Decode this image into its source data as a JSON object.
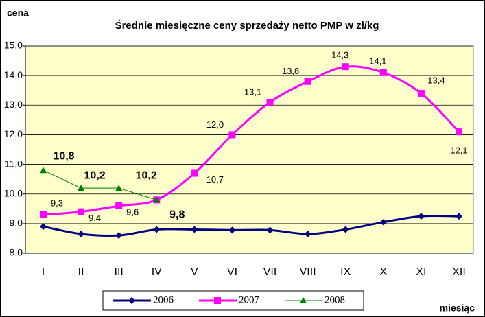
{
  "chart_data": {
    "type": "line",
    "title": "Średnie miesięczne ceny sprzedaży netto PMP w zł/kg",
    "y_label": "cena",
    "x_label": "miesiąc",
    "categories": [
      "I",
      "II",
      "III",
      "IV",
      "V",
      "VI",
      "VII",
      "VIII",
      "IX",
      "X",
      "XI",
      "XII"
    ],
    "series": [
      {
        "name": "2006",
        "color": "#000080",
        "marker": "diamond",
        "values": [
          8.9,
          8.65,
          8.6,
          8.8,
          8.8,
          8.78,
          8.78,
          8.65,
          8.8,
          9.05,
          9.25,
          9.25
        ]
      },
      {
        "name": "2007",
        "color": "#ff00ff",
        "marker": "square",
        "values": [
          9.3,
          9.4,
          9.6,
          9.8,
          10.7,
          12.0,
          13.1,
          13.8,
          14.3,
          14.1,
          13.4,
          12.1
        ],
        "value_labels": [
          "9,3",
          "9,4",
          "9,6",
          null,
          "10,7",
          "12,0",
          "13,1",
          "13,8",
          "14,3",
          "14,1",
          "13,4",
          "12,1"
        ]
      },
      {
        "name": "2008",
        "color": "#008000",
        "marker": "triangle",
        "values": [
          10.8,
          10.2,
          10.2,
          9.8,
          null,
          null,
          null,
          null,
          null,
          null,
          null,
          null
        ],
        "value_labels": [
          "10,8",
          "10,2",
          "10,2",
          "9,8",
          null,
          null,
          null,
          null,
          null,
          null,
          null,
          null
        ]
      }
    ],
    "ylim": [
      8.0,
      15.0
    ],
    "yticks": [
      {
        "value": 8,
        "label": "8,0"
      },
      {
        "value": 9,
        "label": "9,0"
      },
      {
        "value": 10,
        "label": "10,0"
      },
      {
        "value": 11,
        "label": "11,0"
      },
      {
        "value": 12,
        "label": "12,0"
      },
      {
        "value": 13,
        "label": "13,0"
      },
      {
        "value": 14,
        "label": "14,0"
      },
      {
        "value": 15,
        "label": "15,0"
      }
    ],
    "grid": true,
    "legend": "bottom"
  }
}
